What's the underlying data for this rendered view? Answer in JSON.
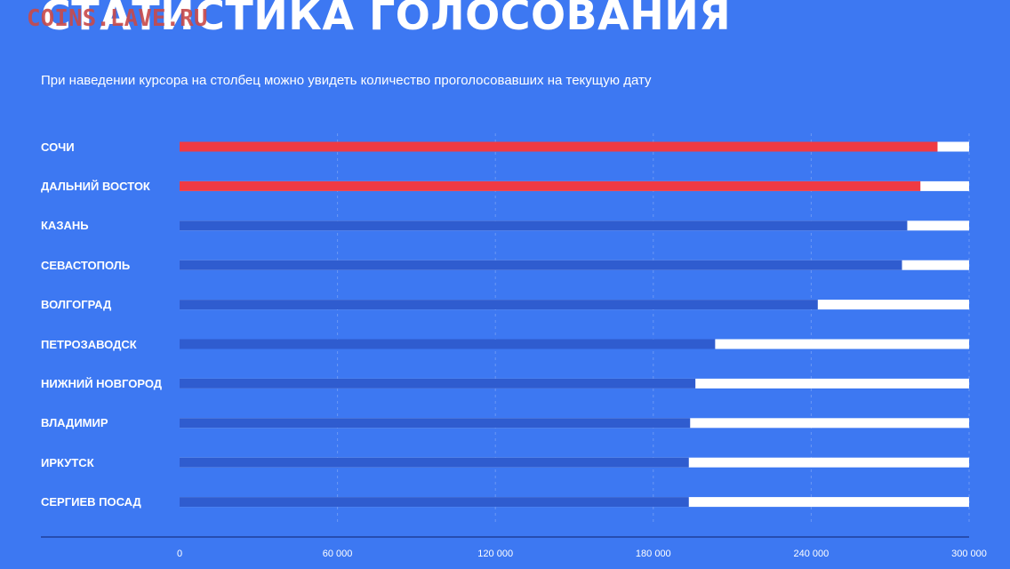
{
  "header": {
    "title": "СТАТИСТИКА ГОЛОСОВАНИЯ",
    "watermark": "COINS.LAVE.RU",
    "subtitle": "При наведении курсора на столбец можно увидеть количество проголосовавших на текущую дату"
  },
  "colors": {
    "background": "#3d78f2",
    "bar_default": "#2f5ccf",
    "bar_highlight": "#ef3a43",
    "bar_remainder": "#ffffff",
    "grid": "#7fa6f7",
    "axis": "#1f3f9a"
  },
  "chart_data": {
    "type": "bar",
    "orientation": "horizontal",
    "categories": [
      "СОЧИ",
      "ДАЛЬНИЙ ВОСТОК",
      "КАЗАНЬ",
      "СЕВАСТОПОЛЬ",
      "ВОЛГОГРАД",
      "ПЕТРОЗАВОДСК",
      "НИЖНИЙ НОВГОРОД",
      "ВЛАДИМИР",
      "ИРКУТСК",
      "СЕРГИЕВ ПОСАД"
    ],
    "values": [
      288000,
      281500,
      276500,
      274500,
      242500,
      203500,
      196000,
      194000,
      193500,
      193500
    ],
    "highlighted": [
      true,
      true,
      false,
      false,
      false,
      false,
      false,
      false,
      false,
      false
    ],
    "xlim": [
      0,
      300000
    ],
    "xticks": [
      0,
      60000,
      120000,
      180000,
      240000,
      300000
    ],
    "xtick_labels": [
      "0",
      "60 000",
      "120 000",
      "180 000",
      "240 000",
      "300 000"
    ],
    "grid": "vertical dashed",
    "legend": "none"
  }
}
